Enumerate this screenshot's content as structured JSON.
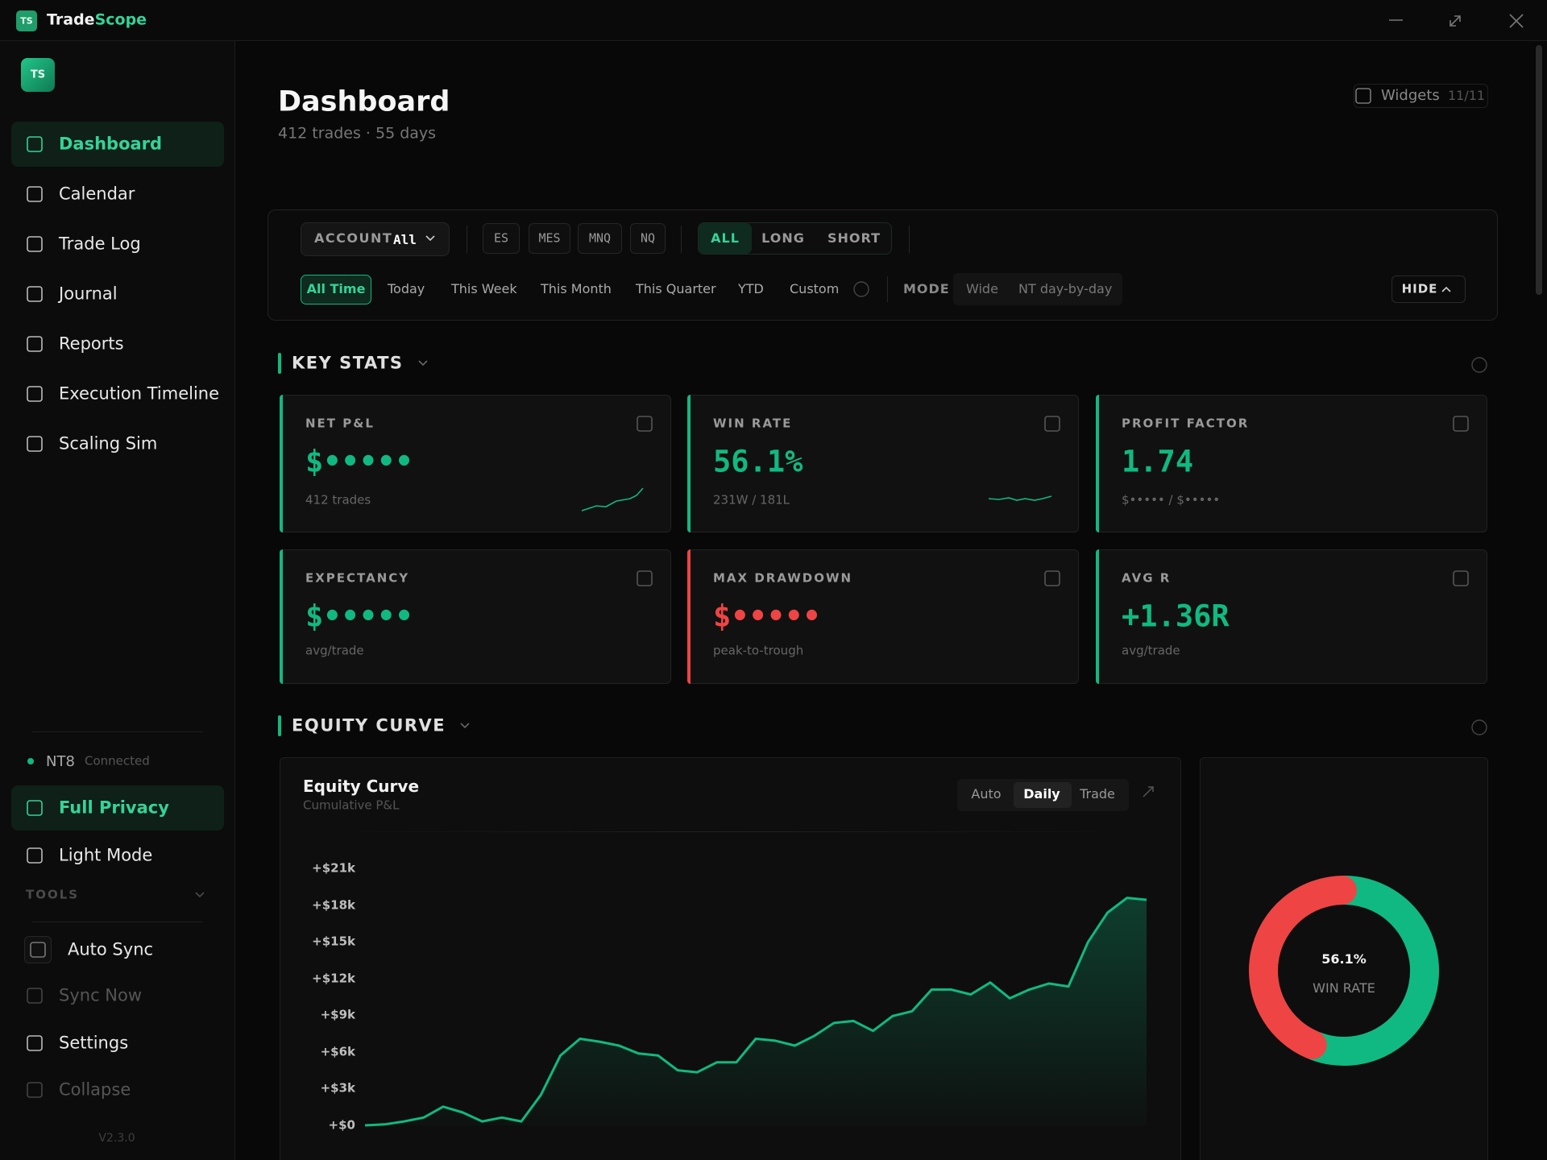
{
  "window": {
    "logo": "TS",
    "brand_a": "Trade",
    "brand_b": "Scope"
  },
  "sidebar": {
    "avatar": "TS",
    "nav": [
      "Dashboard",
      "Calendar",
      "Trade Log",
      "Journal",
      "Reports",
      "Execution Timeline",
      "Scaling Sim"
    ],
    "connection": {
      "name": "NT8",
      "status": "Connected"
    },
    "bottom": [
      "Full Privacy",
      "Light Mode"
    ],
    "tools_label": "TOOLS",
    "tools": [
      "Auto Sync",
      "Sync Now",
      "Settings",
      "Collapse"
    ],
    "version": "V2.3.0"
  },
  "header": {
    "title": "Dashboard",
    "subtitle": "412 trades · 55 days",
    "widgets_label": "Widgets",
    "widgets_count": "11/11"
  },
  "filters": {
    "account_label": "ACCOUNT",
    "account_value": "All",
    "symbols": [
      "ES",
      "MES",
      "MNQ",
      "NQ"
    ],
    "sides": [
      "ALL",
      "LONG",
      "SHORT"
    ],
    "periods": [
      "All Time",
      "Today",
      "This Week",
      "This Month",
      "This Quarter",
      "YTD",
      "Custom"
    ],
    "mode_label": "MODE",
    "modes": [
      "Wide",
      "NT day-by-day"
    ],
    "hide": "HIDE"
  },
  "key_stats": {
    "title": "KEY STATS",
    "cards": [
      {
        "label": "NET P&L",
        "value": "$•••••",
        "sub": "412 trades",
        "color": "#10b981"
      },
      {
        "label": "WIN RATE",
        "value": "56.1%",
        "sub": "231W / 181L",
        "color": "#10b981"
      },
      {
        "label": "PROFIT FACTOR",
        "value": "1.74",
        "sub": "$••••• / $•••••",
        "color": "#10b981"
      },
      {
        "label": "EXPECTANCY",
        "value": "$•••••",
        "sub": "avg/trade",
        "color": "#10b981"
      },
      {
        "label": "MAX DRAWDOWN",
        "value": "$•••••",
        "sub": "peak-to-trough",
        "color": "#ef4444"
      },
      {
        "label": "AVG R",
        "value": "+1.36R",
        "sub": "avg/trade",
        "color": "#10b981"
      }
    ]
  },
  "equity": {
    "section_title": "EQUITY CURVE",
    "title": "Equity Curve",
    "subtitle": "Cumulative P&L",
    "modes": [
      "Auto",
      "Daily",
      "Trade"
    ],
    "chart": {
      "type": "line",
      "color": "#10b981",
      "grid": false,
      "ylim": [
        0,
        21000
      ],
      "yticks": [
        {
          "value": 0,
          "label": "+$0"
        },
        {
          "value": 3000,
          "label": "+$3k"
        },
        {
          "value": 6000,
          "label": "+$6k"
        },
        {
          "value": 9000,
          "label": "+$9k"
        },
        {
          "value": 12000,
          "label": "+$12k"
        },
        {
          "value": 15000,
          "label": "+$15k"
        },
        {
          "value": 18000,
          "label": "+$18k"
        },
        {
          "value": 21000,
          "label": "+$21k"
        }
      ],
      "values": [
        0,
        80,
        320,
        640,
        1530,
        1050,
        320,
        640,
        320,
        2490,
        5710,
        7080,
        6840,
        6520,
        5870,
        5710,
        4500,
        4340,
        5150,
        5150,
        7080,
        6920,
        6520,
        7320,
        8370,
        8530,
        7720,
        8930,
        9330,
        11100,
        11100,
        10700,
        11670,
        10380,
        11100,
        11590,
        11350,
        14970,
        17380,
        18590,
        18430
      ]
    }
  },
  "donut": {
    "type": "pie",
    "center_value": "56.1%",
    "center_label": "WIN RATE",
    "values": [
      56.1,
      43.9
    ],
    "colors": [
      "#10b981",
      "#ef4444"
    ]
  }
}
